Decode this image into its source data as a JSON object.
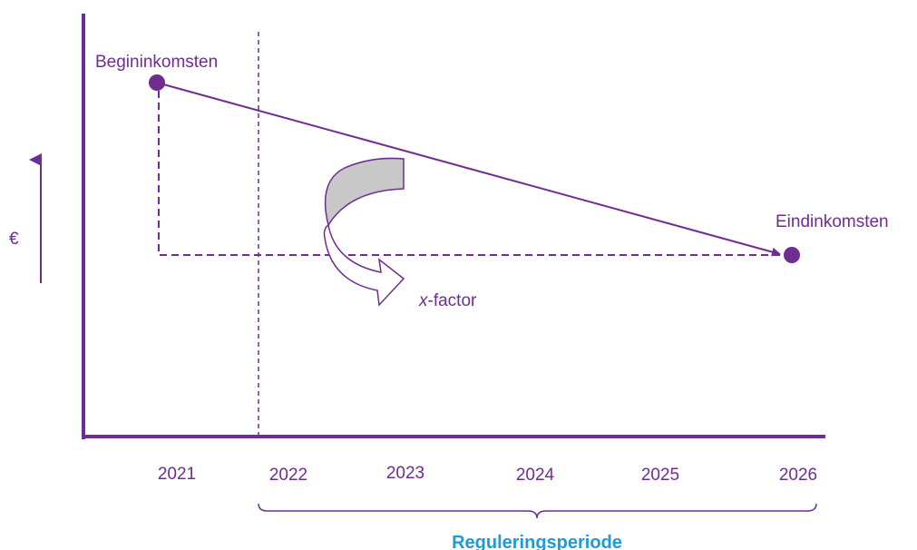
{
  "labels": {
    "start": "Begininkomsten",
    "end": "Eindinkomsten",
    "currency": "€",
    "xfactor": {
      "italic": "x",
      "rest": "-factor"
    },
    "years": [
      "2021",
      "2022",
      "2023",
      "2024",
      "2025",
      "2026"
    ],
    "period": "Reguleringsperiode"
  }
}
